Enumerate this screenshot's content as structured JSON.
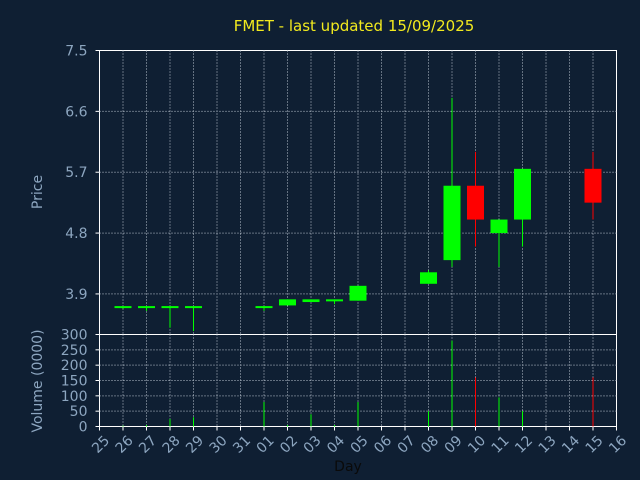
{
  "chart_data": {
    "type": "candlestick",
    "title": "FMET - last updated 15/09/2025",
    "xlabel": "Day",
    "price_panel": {
      "ylabel": "Price",
      "ylim": [
        3.3,
        7.5
      ],
      "yticks": [
        "3.9",
        "4.8",
        "5.7",
        "6.6",
        "7.5"
      ]
    },
    "volume_panel": {
      "ylabel": "Volume (0000)",
      "ylim": [
        0,
        300
      ],
      "yticks": [
        "0",
        "50",
        "100",
        "150",
        "200",
        "250",
        "300"
      ]
    },
    "x_tick_labels": [
      "25",
      "26",
      "27",
      "28",
      "29",
      "30",
      "31",
      "01",
      "02",
      "03",
      "04",
      "05",
      "06",
      "07",
      "08",
      "09",
      "10",
      "11",
      "12",
      "13",
      "14",
      "15",
      "16"
    ],
    "colors": {
      "up": "#00ff00",
      "down": "#ff0000",
      "title": "#f2ea1e",
      "background": "#0f1f33"
    },
    "candles": [
      {
        "day": "26",
        "open": 3.7,
        "close": 3.72,
        "high": 3.72,
        "low": 3.68,
        "volume": 3
      },
      {
        "day": "27",
        "open": 3.7,
        "close": 3.72,
        "high": 3.72,
        "low": 3.65,
        "volume": 5
      },
      {
        "day": "28",
        "open": 3.7,
        "close": 3.72,
        "high": 3.72,
        "low": 3.4,
        "volume": 25
      },
      {
        "day": "29",
        "open": 3.7,
        "close": 3.72,
        "high": 3.72,
        "low": 3.35,
        "volume": 30
      },
      {
        "day": "01",
        "open": 3.7,
        "close": 3.72,
        "high": 3.72,
        "low": 3.65,
        "volume": 80
      },
      {
        "day": "02",
        "open": 3.73,
        "close": 3.82,
        "high": 3.82,
        "low": 3.73,
        "volume": 5
      },
      {
        "day": "03",
        "open": 3.78,
        "close": 3.82,
        "high": 3.82,
        "low": 3.78,
        "volume": 40
      },
      {
        "day": "04",
        "open": 3.8,
        "close": 3.82,
        "high": 3.82,
        "low": 3.75,
        "volume": 5
      },
      {
        "day": "05",
        "open": 3.8,
        "close": 4.02,
        "high": 4.02,
        "low": 3.8,
        "volume": 80
      },
      {
        "day": "08",
        "open": 4.05,
        "close": 4.22,
        "high": 4.25,
        "low": 4.05,
        "volume": 50
      },
      {
        "day": "09",
        "open": 4.4,
        "close": 5.5,
        "high": 6.8,
        "low": 4.3,
        "volume": 280
      },
      {
        "day": "10",
        "open": 5.5,
        "close": 5.0,
        "high": 6.0,
        "low": 4.6,
        "volume": 160
      },
      {
        "day": "11",
        "open": 4.8,
        "close": 5.0,
        "high": 5.0,
        "low": 4.3,
        "volume": 95
      },
      {
        "day": "12",
        "open": 5.0,
        "close": 5.75,
        "high": 5.75,
        "low": 4.6,
        "volume": 50
      },
      {
        "day": "15",
        "open": 5.75,
        "close": 5.25,
        "high": 6.0,
        "low": 5.0,
        "volume": 160
      }
    ]
  }
}
